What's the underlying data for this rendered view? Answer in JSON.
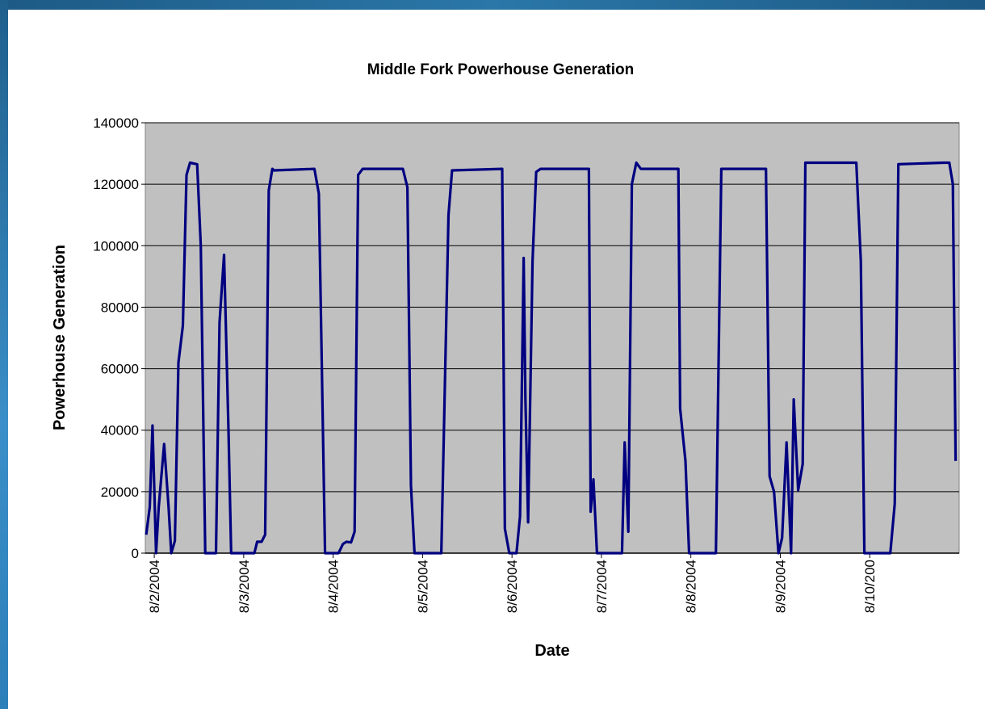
{
  "chart_data": {
    "type": "line",
    "title": "Middle Fork Powerhouse Generation",
    "x_label": "Date",
    "y_label": "Powerhouse Generation",
    "xlim": [
      1.9,
      11
    ],
    "xticks": [
      {
        "value": 2,
        "label": "8/2/2004"
      },
      {
        "value": 3,
        "label": "8/3/2004"
      },
      {
        "value": 4,
        "label": "8/4/2004"
      },
      {
        "value": 5,
        "label": "8/5/2004"
      },
      {
        "value": 6,
        "label": "8/6/2004"
      },
      {
        "value": 7,
        "label": "8/7/2004"
      },
      {
        "value": 8,
        "label": "8/8/2004"
      },
      {
        "value": 9,
        "label": "8/9/2004"
      },
      {
        "value": 10,
        "label": "8/10/200"
      }
    ],
    "ylim": [
      0,
      140000
    ],
    "yticks": [
      0,
      20000,
      40000,
      60000,
      80000,
      100000,
      120000,
      140000
    ],
    "grid": true,
    "plot_background": "#c0c0c0",
    "x": [
      1.91,
      1.95,
      1.98,
      2.02,
      2.05,
      2.11,
      2.16,
      2.19,
      2.23,
      2.27,
      2.32,
      2.36,
      2.4,
      2.48,
      2.52,
      2.57,
      2.69,
      2.73,
      2.78,
      2.83,
      2.86,
      3.12,
      3.15,
      3.2,
      3.24,
      3.28,
      3.32,
      3.34,
      3.79,
      3.84,
      3.91,
      4.06,
      4.11,
      4.15,
      4.2,
      4.24,
      4.28,
      4.33,
      4.78,
      4.83,
      4.87,
      4.91,
      5.21,
      5.29,
      5.33,
      5.89,
      5.92,
      5.97,
      6.05,
      6.09,
      6.13,
      6.15,
      6.18,
      6.23,
      6.27,
      6.32,
      6.86,
      6.88,
      6.91,
      6.95,
      7.23,
      7.26,
      7.3,
      7.34,
      7.39,
      7.44,
      7.86,
      7.88,
      7.94,
      7.98,
      8.28,
      8.34,
      8.84,
      8.88,
      8.93,
      8.98,
      9.02,
      9.07,
      9.12,
      9.15,
      9.2,
      9.25,
      9.28,
      9.85,
      9.9,
      9.94,
      10.23,
      10.28,
      10.32,
      10.82,
      10.89,
      10.93,
      10.96
    ],
    "series": [
      {
        "name": "Powerhouse Generation",
        "color": "#000080",
        "values": [
          6000,
          15000,
          41500,
          0,
          15000,
          35500,
          15000,
          0,
          4000,
          62000,
          74000,
          123000,
          127000,
          126500,
          100000,
          0,
          0,
          75000,
          97000,
          40000,
          0,
          0,
          3700,
          3700,
          6000,
          118000,
          125000,
          124500,
          125000,
          117000,
          0,
          0,
          3000,
          3700,
          3500,
          7000,
          123000,
          125000,
          125000,
          119000,
          22000,
          0,
          0,
          110000,
          124500,
          125000,
          8000,
          0,
          0,
          12000,
          96000,
          50000,
          10000,
          95000,
          124000,
          125000,
          125000,
          13500,
          24000,
          0,
          0,
          36000,
          7000,
          120000,
          127000,
          125000,
          125000,
          47000,
          30000,
          0,
          0,
          125000,
          125000,
          25000,
          20000,
          0,
          5000,
          36000,
          0,
          50000,
          20500,
          29000,
          127000,
          127000,
          95000,
          0,
          0,
          16000,
          126500,
          127000,
          127000,
          120000,
          30000
        ]
      }
    ]
  }
}
